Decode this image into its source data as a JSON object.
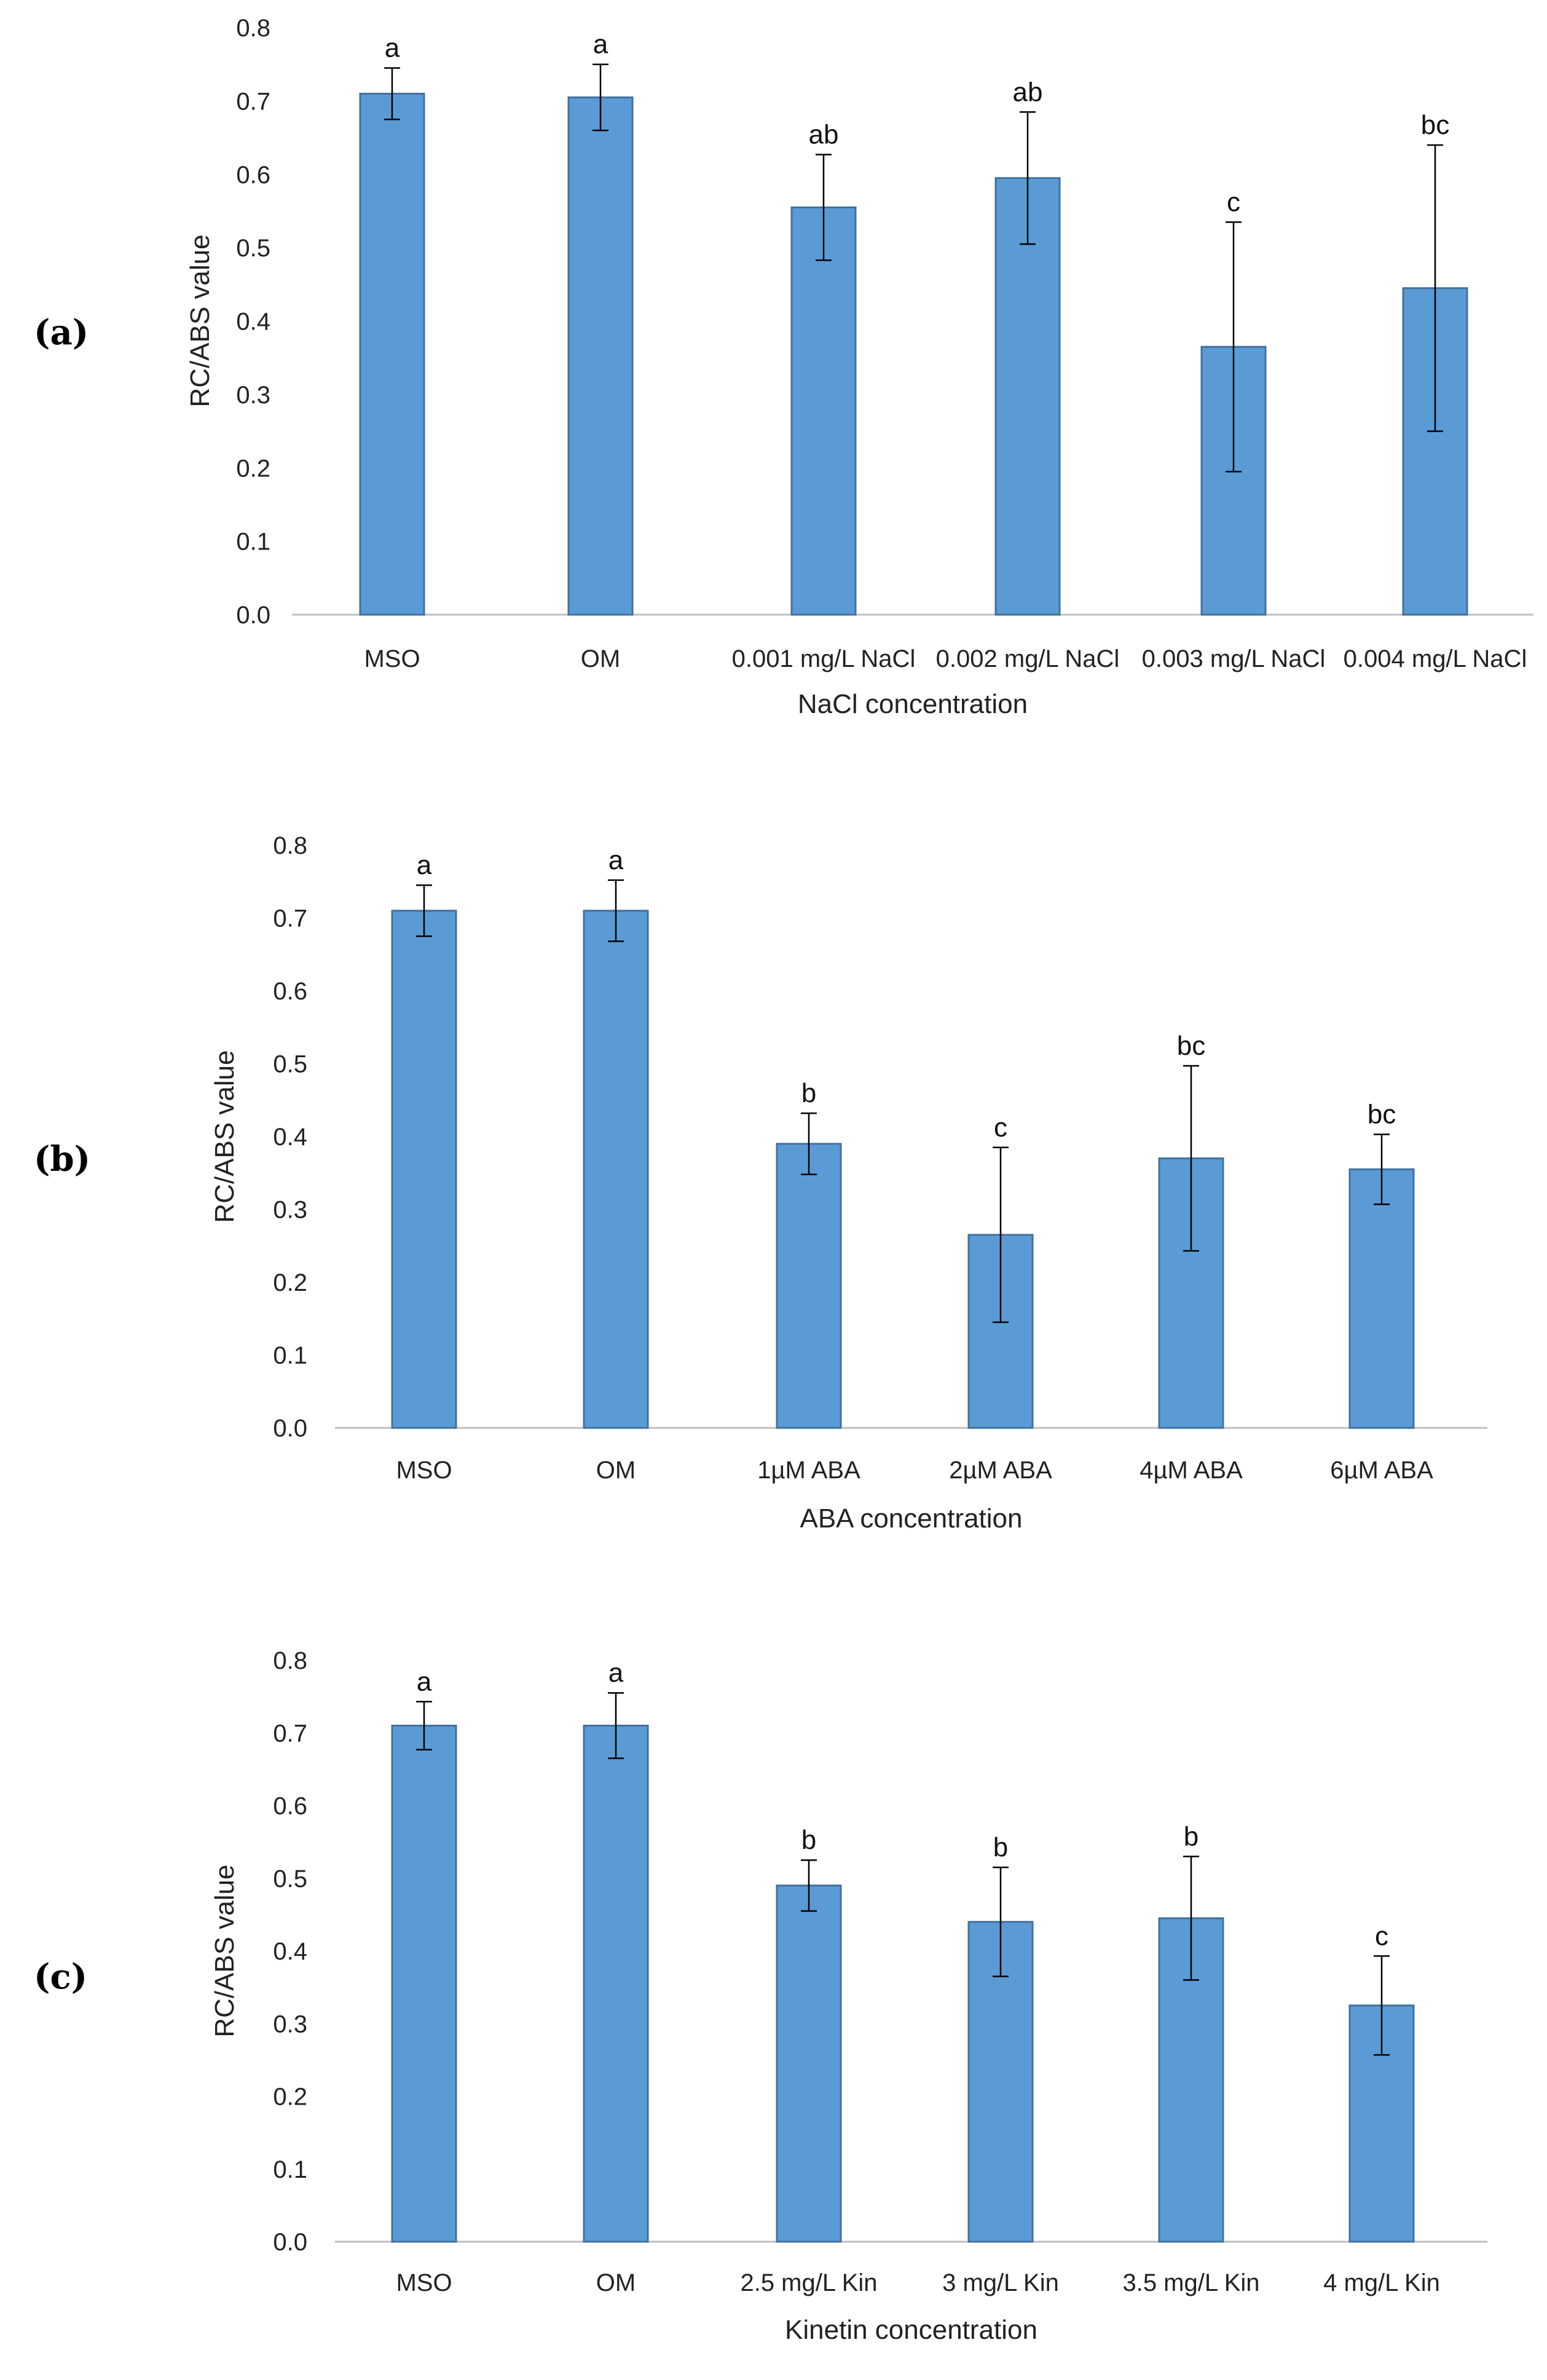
{
  "chart_data": [
    {
      "type": "bar",
      "panel": "(a)",
      "categories": [
        "MSO",
        "OM",
        "0.001 mg/L NaCl",
        "0.002 mg/L NaCl",
        "0.003 mg/L NaCl",
        "0.004 mg/L NaCl"
      ],
      "values": [
        0.71,
        0.705,
        0.555,
        0.595,
        0.365,
        0.445
      ],
      "errors": [
        0.035,
        0.045,
        0.072,
        0.09,
        0.17,
        0.195
      ],
      "significance": [
        "a",
        "a",
        "ab",
        "ab",
        "c",
        "bc"
      ],
      "xlabel": "NaCl concentration",
      "ylabel": "RC/ABS value",
      "ylim": [
        0,
        0.8
      ],
      "yticks": [
        "0.0",
        "0.1",
        "0.2",
        "0.3",
        "0.4",
        "0.5",
        "0.6",
        "0.7",
        "0.8"
      ],
      "bar_color": "#5b9bd5"
    },
    {
      "type": "bar",
      "panel": "(b)",
      "categories": [
        "MSO",
        "OM",
        "1µM ABA",
        "2µM ABA",
        "4µM ABA",
        "6µM ABA"
      ],
      "values": [
        0.71,
        0.71,
        0.39,
        0.265,
        0.37,
        0.355
      ],
      "errors": [
        0.035,
        0.042,
        0.042,
        0.12,
        0.127,
        0.048
      ],
      "significance": [
        "a",
        "a",
        "b",
        "c",
        "bc",
        "bc"
      ],
      "xlabel": "ABA concentration",
      "ylabel": "RC/ABS value",
      "ylim": [
        0,
        0.8
      ],
      "yticks": [
        "0.0",
        "0.1",
        "0.2",
        "0.3",
        "0.4",
        "0.5",
        "0.6",
        "0.7",
        "0.8"
      ],
      "bar_color": "#5b9bd5"
    },
    {
      "type": "bar",
      "panel": "(c)",
      "categories": [
        "MSO",
        "OM",
        "2.5 mg/L Kin",
        "3 mg/L Kin",
        "3.5 mg/L Kin",
        "4 mg/L Kin"
      ],
      "values": [
        0.71,
        0.71,
        0.49,
        0.44,
        0.445,
        0.325
      ],
      "errors": [
        0.033,
        0.045,
        0.035,
        0.075,
        0.085,
        0.068
      ],
      "significance": [
        "a",
        "a",
        "b",
        "b",
        "b",
        "c"
      ],
      "xlabel": "Kinetin concentration",
      "ylabel": "RC/ABS value",
      "ylim": [
        0,
        0.8
      ],
      "yticks": [
        "0.0",
        "0.1",
        "0.2",
        "0.3",
        "0.4",
        "0.5",
        "0.6",
        "0.7",
        "0.8"
      ],
      "bar_color": "#5b9bd5"
    }
  ]
}
